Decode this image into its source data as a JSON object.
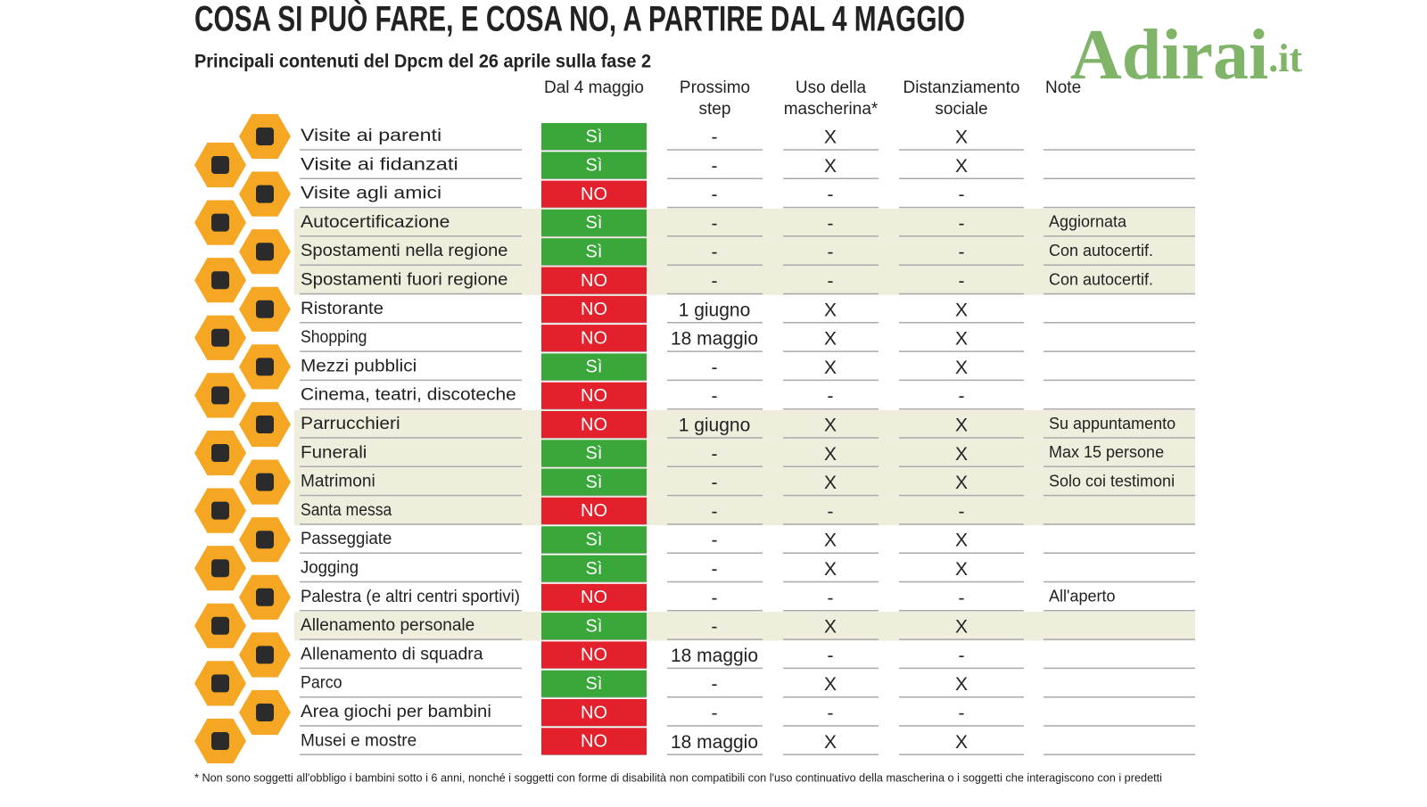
{
  "header": {
    "title": "COSA SI PUÒ FARE, E COSA NO, A PARTIRE DAL 4 MAGGIO",
    "subtitle": "Principali contenuti del Dpcm del 26 aprile sulla fase 2",
    "watermark": "Adirai",
    "watermark_suffix": ".it"
  },
  "table": {
    "columns": [
      "Dal 4 maggio",
      [
        "Prossimo",
        "step"
      ],
      [
        "Uso della",
        "mascherina*"
      ],
      [
        "Distanziamento",
        "sociale"
      ],
      "Note"
    ],
    "rows": [
      {
        "activity": "Visite ai parenti",
        "status": "Sì",
        "color": "#3aa73a",
        "next": "-",
        "mask": "X",
        "distance": "X",
        "note": null
      },
      {
        "activity": "Visite ai fidanzati",
        "status": "Sì",
        "color": "#3aa73a",
        "next": "-",
        "mask": "X",
        "distance": "X",
        "note": null
      },
      {
        "activity": "Visite agli amici",
        "status": "NO",
        "color": "#e3202b",
        "next": "-",
        "mask": "-",
        "distance": "-",
        "note": null
      },
      {
        "activity": "Autocertificazione",
        "status": "Sì",
        "color": "#3aa73a",
        "next": "-",
        "mask": "-",
        "distance": "-",
        "note": "Aggiornata",
        "shaded": true
      },
      {
        "activity": "Spostamenti nella regione",
        "status": "Sì",
        "color": "#3aa73a",
        "next": "-",
        "mask": "-",
        "distance": "-",
        "note": "Con autocertif.",
        "shaded": true
      },
      {
        "activity": "Spostamenti fuori regione",
        "status": "NO",
        "color": "#e3202b",
        "next": "-",
        "mask": "-",
        "distance": "-",
        "note": "Con autocertif.",
        "shaded": true
      },
      {
        "activity": "Ristorante",
        "status": "NO",
        "color": "#e3202b",
        "next": "1 giugno",
        "mask": "X",
        "distance": "X",
        "note": null
      },
      {
        "activity": "Shopping",
        "status": "NO",
        "color": "#e3202b",
        "next": "18 maggio",
        "mask": "X",
        "distance": "X",
        "note": null
      },
      {
        "activity": "Mezzi pubblici",
        "status": "Sì",
        "color": "#3aa73a",
        "next": "-",
        "mask": "X",
        "distance": "X",
        "note": null
      },
      {
        "activity": "Cinema, teatri, discoteche",
        "status": "NO",
        "color": "#e3202b",
        "next": "-",
        "mask": "-",
        "distance": "-",
        "note": null
      },
      {
        "activity": "Parrucchieri",
        "status": "NO",
        "color": "#e3202b",
        "next": "1 giugno",
        "mask": "X",
        "distance": "X",
        "note": "Su appuntamento",
        "shaded": true
      },
      {
        "activity": "Funerali",
        "status": "Sì",
        "color": "#3aa73a",
        "next": "-",
        "mask": "X",
        "distance": "X",
        "note": "Max 15 persone",
        "shaded": true
      },
      {
        "activity": "Matrimoni",
        "status": "Sì",
        "color": "#3aa73a",
        "next": "-",
        "mask": "X",
        "distance": "X",
        "note": "Solo coi testimoni",
        "shaded": true
      },
      {
        "activity": "Santa messa",
        "status": "NO",
        "color": "#e3202b",
        "next": "-",
        "mask": "-",
        "distance": "-",
        "note": null,
        "shaded": true
      },
      {
        "activity": "Passeggiate",
        "status": "Sì",
        "color": "#3aa73a",
        "next": "-",
        "mask": "X",
        "distance": "X",
        "note": null
      },
      {
        "activity": "Jogging",
        "status": "Sì",
        "color": "#3aa73a",
        "next": "-",
        "mask": "X",
        "distance": "X",
        "note": null
      },
      {
        "activity": "Palestra (e altri centri sportivi)",
        "status": "NO",
        "color": "#e3202b",
        "next": "-",
        "mask": "-",
        "distance": "-",
        "note": "All'aperto"
      },
      {
        "activity": "Allenamento personale",
        "status": "Sì",
        "color": "#3aa73a",
        "next": "-",
        "mask": "X",
        "distance": "X",
        "note": null,
        "shaded": true
      },
      {
        "activity": "Allenamento di squadra",
        "status": "NO",
        "color": "#e3202b",
        "next": "18 maggio",
        "mask": "-",
        "distance": "-",
        "note": null
      },
      {
        "activity": "Parco",
        "status": "Sì",
        "color": "#3aa73a",
        "next": "-",
        "mask": "X",
        "distance": "X",
        "note": null
      },
      {
        "activity": "Area giochi per bambini",
        "status": "NO",
        "color": "#e3202b",
        "next": "-",
        "mask": "-",
        "distance": "-",
        "note": null
      },
      {
        "activity": "Musei e mostre",
        "status": "NO",
        "color": "#e3202b",
        "next": "18 maggio",
        "mask": "X",
        "distance": "X",
        "note": null
      }
    ]
  },
  "footnote": "* Non sono soggetti all'obbligo i bambini sotto i 6 anni, nonché i soggetti con forme di disabilità non compatibili con l'uso continuativo della mascherina o i soggetti che interagiscono con i predetti"
}
